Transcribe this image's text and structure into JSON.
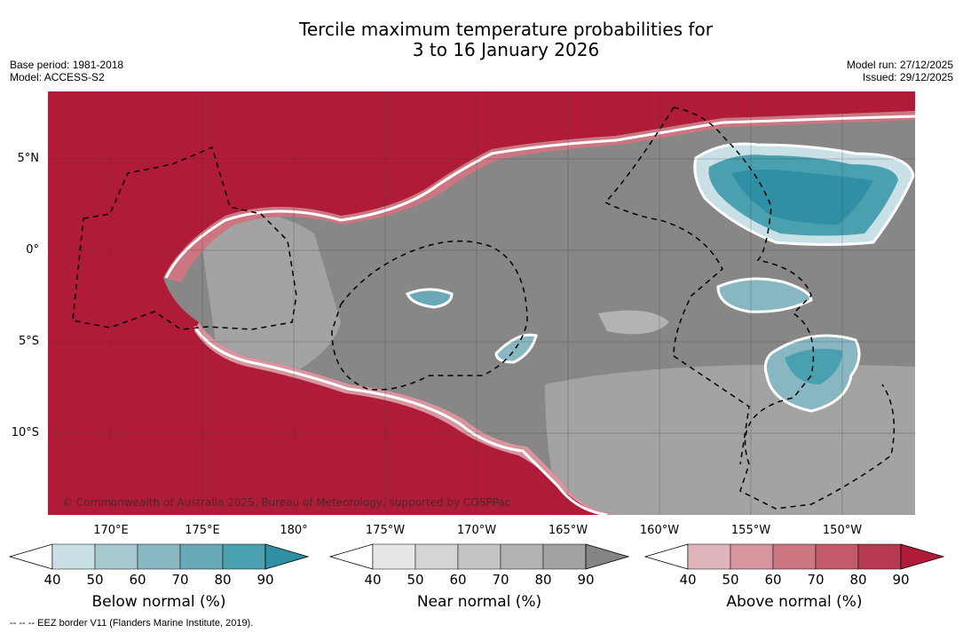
{
  "title": {
    "line1": "Tercile maximum temperature probabilities for",
    "line2": "3 to 16 January 2026"
  },
  "info_left": {
    "base_period": "Base period: 1981-2018",
    "model": "Model: ACCESS-S2"
  },
  "info_right": {
    "model_run": "Model run: 27/12/2025",
    "issued": "Issued: 29/12/2025"
  },
  "map": {
    "lat_labels": [
      "5°N",
      "0°",
      "5°S",
      "10°S"
    ],
    "lon_labels": [
      "170°E",
      "175°E",
      "180°",
      "175°W",
      "170°W",
      "165°W",
      "160°W",
      "155°W",
      "150°W"
    ],
    "copyright": "© Commonwealth of Australia 2025, Bureau of Meteorology, supported by COSPPac",
    "colors": {
      "above_dominant": "#b01c38",
      "near_dominant": "#878787",
      "below_dominant": "#2f8fa4"
    }
  },
  "colorbars": {
    "below": {
      "title": "Below normal (%)",
      "ticks": [
        "40",
        "50",
        "60",
        "70",
        "80",
        "90"
      ],
      "colors": [
        "#ffffff",
        "#c8e0e6",
        "#a6c8d0",
        "#88b7c2",
        "#6aa9b8",
        "#4ba0b0",
        "#2f8fa4"
      ]
    },
    "near": {
      "title": "Near normal (%)",
      "ticks": [
        "40",
        "50",
        "60",
        "70",
        "80",
        "90"
      ],
      "colors": [
        "#ffffff",
        "#e6e6e6",
        "#d4d4d4",
        "#c4c4c4",
        "#b3b3b3",
        "#a2a2a2",
        "#858585"
      ]
    },
    "above": {
      "title": "Above normal (%)",
      "ticks": [
        "40",
        "50",
        "60",
        "70",
        "80",
        "90"
      ],
      "colors": [
        "#ffffff",
        "#e0b4bb",
        "#d6959f",
        "#cc7681",
        "#c25a69",
        "#b83a50",
        "#b01c38"
      ]
    }
  },
  "footer": {
    "eez_note": "--  --  -- EEZ border V11 (Flanders Marine Institute, 2019)."
  }
}
